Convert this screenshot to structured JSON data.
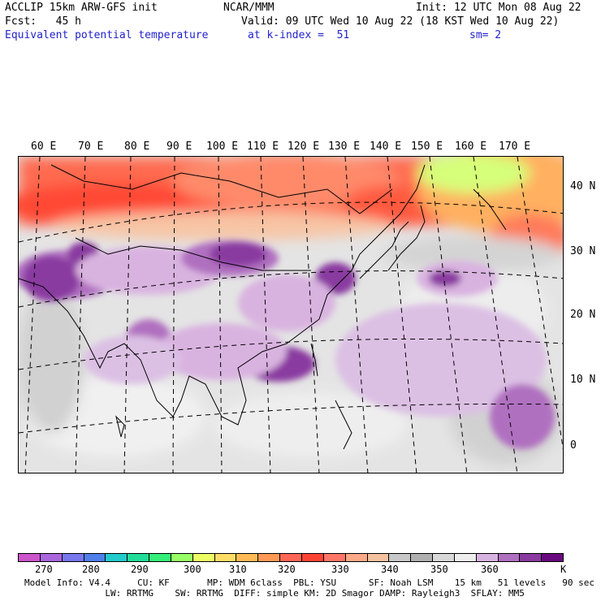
{
  "header": {
    "model": "ACCLIP 15km ARW-GFS init",
    "center": "NCAR/MMM",
    "init": "Init: 12 UTC Mon 08 Aug 22",
    "forecast": "Fcst:   45 h",
    "valid": "Valid: 09 UTC Wed 10 Aug 22 (18 KST Wed 10 Aug 22)",
    "field": "Equivalent potential temperature",
    "level": "at k-index =  51",
    "smoothing": "sm= 2"
  },
  "map": {
    "lon_labels": [
      "60 E",
      "70 E",
      "80 E",
      "90 E",
      "100 E",
      "110 E",
      "120 E",
      "130 E",
      "140 E",
      "150 E",
      "160 E",
      "170 E"
    ],
    "lat_labels": [
      "40 N",
      "30 N",
      "20 N",
      "10 N",
      "0"
    ]
  },
  "colorbar": {
    "colors": [
      "#cc55cc",
      "#aa66dd",
      "#7777ee",
      "#4f7fea",
      "#22cccc",
      "#22dd99",
      "#33ee77",
      "#99ff66",
      "#eeff66",
      "#ffdd66",
      "#ffbb55",
      "#ff9955",
      "#ff6655",
      "#ff4433",
      "#ff7766",
      "#ffaa88",
      "#f4c2a0",
      "#c8c8c8",
      "#b0b0b0",
      "#d8d8d8",
      "#eeeeee",
      "#d9b3e0",
      "#b070c0",
      "#8a3aa0",
      "#6a0a80"
    ],
    "labels": [
      "270",
      "280",
      "290",
      "300",
      "310",
      "320",
      "330",
      "340",
      "350",
      "360"
    ],
    "unit": "K"
  },
  "footer": {
    "line1": "Model Info: V4.4     CU: KF       MP: WDM 6class  PBL: YSU      SF: Noah LSM    15 km   51 levels   90 sec",
    "line2": "               LW: RRTMG    SW: RRTMG  DIFF: simple KM: 2D Smagor DAMP: Rayleigh3  SFLAY: MM5"
  }
}
